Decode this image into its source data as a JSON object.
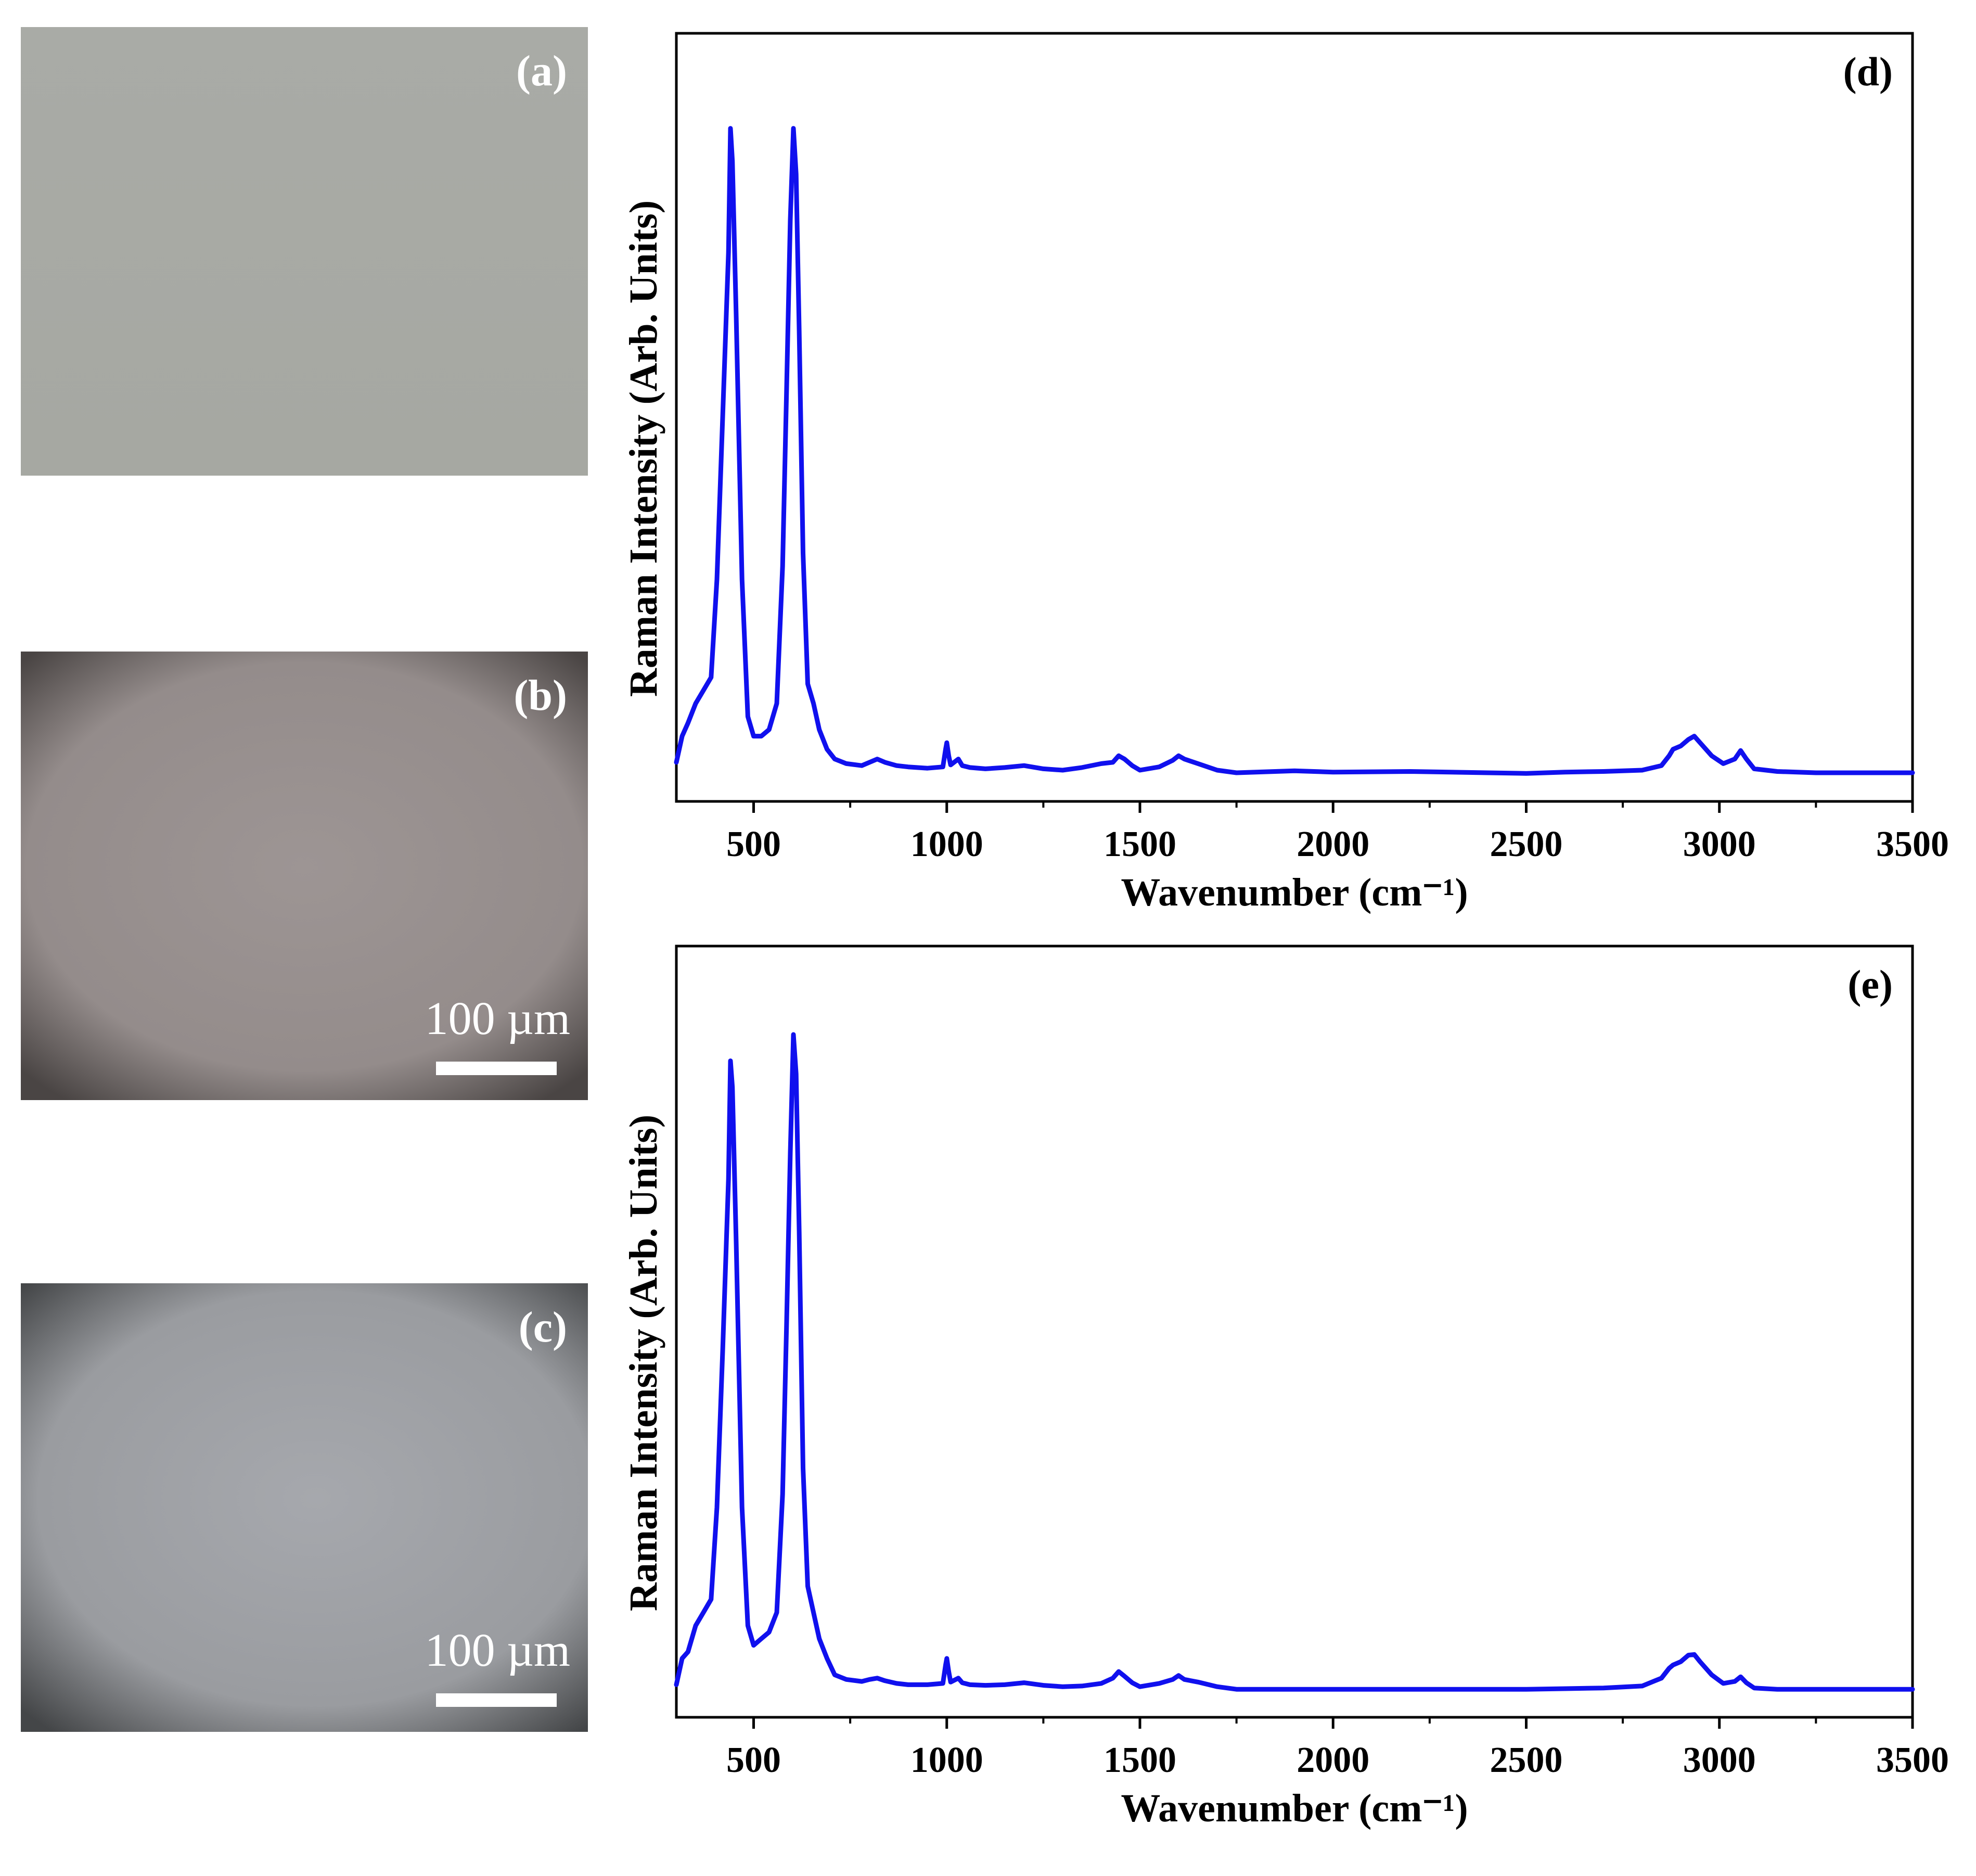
{
  "photos": [
    {
      "label": "(a)",
      "scale_text": ""
    },
    {
      "label": "(b)",
      "scale_text": "100 µm"
    },
    {
      "label": "(c)",
      "scale_text": "100 µm"
    }
  ],
  "colors": {
    "line": "#1010ee",
    "photo_a": "#a9aba6",
    "photo_b": "#9d9594",
    "photo_c": "#a6a8ad"
  },
  "chart_data": [
    {
      "type": "line",
      "panel_label": "(d)",
      "xlabel": "Wavenumber (cm⁻¹)",
      "ylabel": "Raman Intensity (Arb. Units)",
      "xlim": [
        300,
        3500
      ],
      "ylim": [
        0,
        100
      ],
      "xticks": [
        "500",
        "1000",
        "1500",
        "2000",
        "2500",
        "3000",
        "3500"
      ],
      "series": [
        {
          "x": [
            300,
            315,
            330,
            350,
            370,
            390,
            405,
            420,
            435,
            440,
            445,
            455,
            470,
            485,
            500,
            520,
            540,
            560,
            575,
            585,
            595,
            603,
            610,
            618,
            628,
            640,
            655,
            670,
            690,
            710,
            740,
            780,
            800,
            820,
            840,
            870,
            900,
            950,
            990,
            997,
            1000,
            1005,
            1010,
            1030,
            1040,
            1060,
            1100,
            1150,
            1200,
            1250,
            1300,
            1350,
            1400,
            1430,
            1445,
            1460,
            1480,
            1500,
            1550,
            1585,
            1600,
            1615,
            1650,
            1700,
            1750,
            1800,
            1900,
            2000,
            2200,
            2400,
            2500,
            2600,
            2700,
            2800,
            2850,
            2870,
            2880,
            2900,
            2920,
            2935,
            2950,
            2980,
            3010,
            3040,
            3055,
            3070,
            3090,
            3150,
            3250,
            3400,
            3500
          ],
          "y": [
            2,
            6,
            8,
            11,
            13,
            15,
            30,
            55,
            80,
            99,
            94,
            70,
            30,
            9,
            6,
            6,
            7,
            11,
            32,
            58,
            85,
            99,
            92,
            68,
            34,
            14,
            11,
            7,
            4,
            2.5,
            1.8,
            1.5,
            2,
            2.5,
            2,
            1.5,
            1.3,
            1.1,
            1.3,
            4,
            5,
            3,
            1.6,
            2.5,
            1.5,
            1.2,
            1,
            1.2,
            1.5,
            1,
            0.8,
            1.2,
            1.8,
            2,
            3,
            2.5,
            1.5,
            0.8,
            1.3,
            2.3,
            3,
            2.5,
            1.8,
            0.8,
            0.4,
            0.5,
            0.7,
            0.5,
            0.6,
            0.4,
            0.3,
            0.5,
            0.6,
            0.8,
            1.5,
            3,
            4,
            4.5,
            5.5,
            6,
            5,
            3,
            1.8,
            2.5,
            3.8,
            2.5,
            1,
            0.6,
            0.4,
            0.4,
            0.4
          ]
        }
      ]
    },
    {
      "type": "line",
      "panel_label": "(e)",
      "xlabel": "Wavenumber (cm⁻¹)",
      "ylabel": "Raman Intensity (Arb. Units)",
      "xlim": [
        300,
        3500
      ],
      "ylim": [
        0,
        100
      ],
      "xticks": [
        "500",
        "1000",
        "1500",
        "2000",
        "2500",
        "3000",
        "3500"
      ],
      "series": [
        {
          "x": [
            300,
            315,
            330,
            350,
            370,
            390,
            405,
            420,
            435,
            440,
            445,
            455,
            470,
            485,
            500,
            520,
            540,
            560,
            575,
            585,
            595,
            603,
            610,
            618,
            628,
            640,
            655,
            670,
            690,
            710,
            740,
            780,
            800,
            820,
            840,
            870,
            900,
            950,
            990,
            997,
            1000,
            1005,
            1010,
            1030,
            1040,
            1060,
            1100,
            1150,
            1200,
            1250,
            1300,
            1350,
            1400,
            1430,
            1445,
            1460,
            1480,
            1500,
            1550,
            1585,
            1600,
            1615,
            1650,
            1700,
            1750,
            1800,
            1900,
            2000,
            2200,
            2400,
            2500,
            2600,
            2700,
            2800,
            2850,
            2870,
            2880,
            2900,
            2920,
            2935,
            2950,
            2980,
            3010,
            3040,
            3055,
            3070,
            3090,
            3150,
            3250,
            3400,
            3500
          ],
          "y": [
            1,
            5,
            6,
            10,
            12,
            14,
            28,
            52,
            78,
            96,
            92,
            68,
            28,
            10,
            7,
            8,
            9,
            12,
            30,
            55,
            82,
            100,
            94,
            70,
            34,
            16,
            12,
            8,
            5,
            2.5,
            1.8,
            1.5,
            1.8,
            2,
            1.6,
            1.2,
            1,
            1,
            1.2,
            4,
            5,
            3,
            1.4,
            2,
            1.3,
            1,
            0.9,
            1,
            1.3,
            0.9,
            0.7,
            0.8,
            1.2,
            2,
            3,
            2.3,
            1.3,
            0.7,
            1.2,
            1.8,
            2.4,
            1.8,
            1.4,
            0.7,
            0.3,
            0.3,
            0.3,
            0.3,
            0.3,
            0.3,
            0.3,
            0.4,
            0.5,
            0.8,
            2,
            3.5,
            4,
            4.5,
            5.5,
            5.6,
            4.5,
            2.5,
            1.2,
            1.5,
            2.2,
            1.3,
            0.5,
            0.3,
            0.3,
            0.3,
            0.3
          ]
        }
      ]
    }
  ]
}
